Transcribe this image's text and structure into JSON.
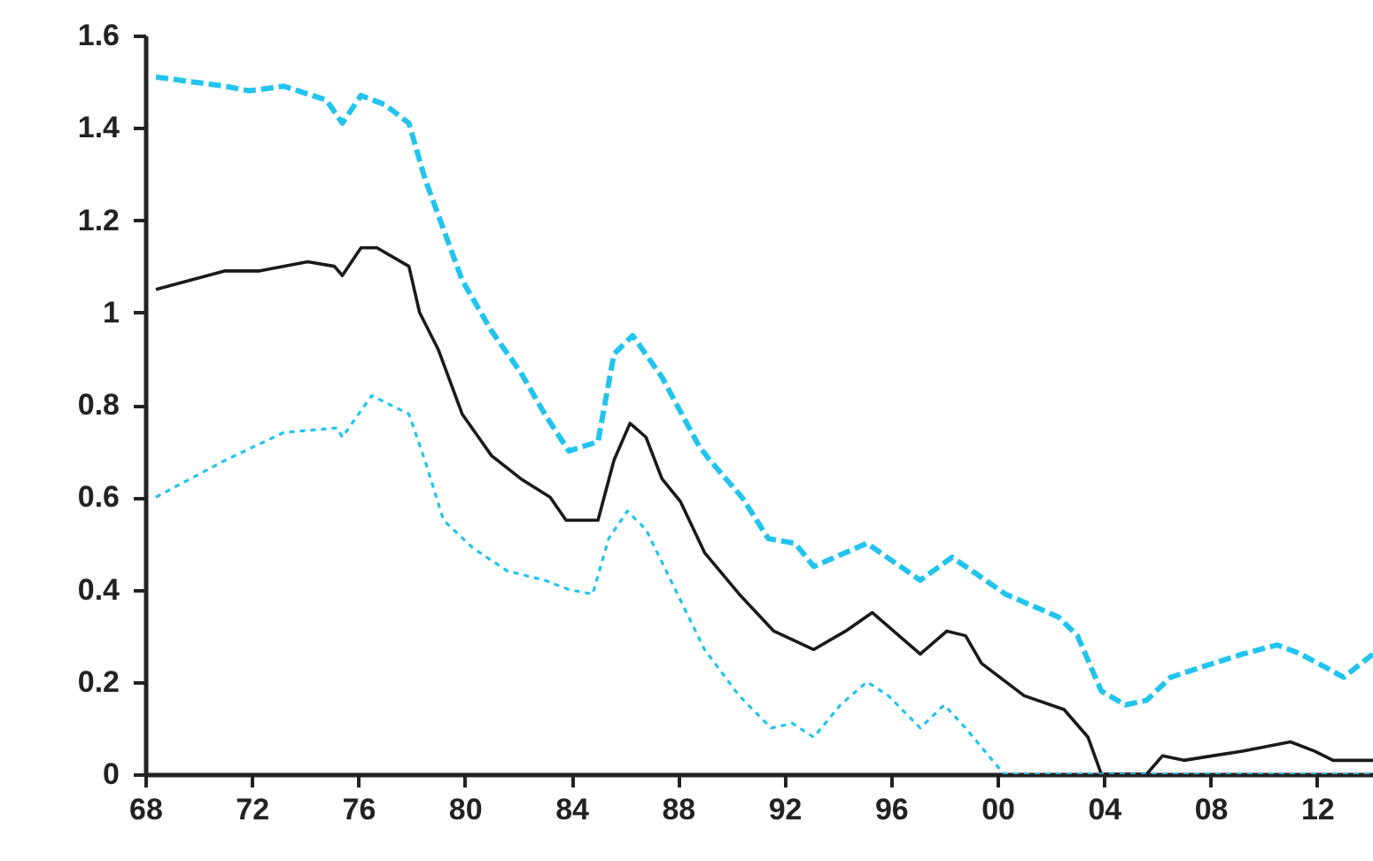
{
  "chart_data": {
    "type": "line",
    "xlim": [
      1968,
      2014.1
    ],
    "xticks": [
      {
        "value": 1968,
        "label": "68"
      },
      {
        "value": 1972,
        "label": "72"
      },
      {
        "value": 1976,
        "label": "76"
      },
      {
        "value": 1980,
        "label": "80"
      },
      {
        "value": 1984,
        "label": "84"
      },
      {
        "value": 1988,
        "label": "88"
      },
      {
        "value": 1992,
        "label": "92"
      },
      {
        "value": 1996,
        "label": "96"
      },
      {
        "value": 2000,
        "label": "00"
      },
      {
        "value": 2004,
        "label": "04"
      },
      {
        "value": 2008,
        "label": "08"
      },
      {
        "value": 2012,
        "label": "12"
      }
    ],
    "ylim": [
      0,
      1.6
    ],
    "yticks": [
      0,
      0.2,
      0.4,
      0.6,
      0.8,
      1,
      1.2,
      1.4,
      1.6
    ],
    "grid": false,
    "series": [
      {
        "color": "#22c4ee",
        "line_style": "dashed",
        "x": [
          1968.4,
          1971,
          1971.9,
          1973.2,
          1974.8,
          1975.4,
          1976.1,
          1977,
          1977.9,
          1978.5,
          1979.2,
          1979.9,
          1981,
          1982.1,
          1983,
          1983.9,
          1985,
          1985.6,
          1986.3,
          1987.4,
          1988.8,
          1989.2,
          1990.4,
          1991.4,
          1992.4,
          1993.1,
          1995.1,
          1997.1,
          1998.3,
          2000.3,
          2002.3,
          2003,
          2003.9,
          2004.8,
          2005.6,
          2006.5,
          2008.1,
          2009.2,
          2010.5,
          2011.4,
          2013,
          2014.1
        ],
        "values": [
          1.51,
          1.49,
          1.48,
          1.49,
          1.46,
          1.41,
          1.47,
          1.45,
          1.41,
          1.29,
          1.18,
          1.07,
          0.96,
          0.87,
          0.78,
          0.7,
          0.72,
          0.91,
          0.95,
          0.86,
          0.71,
          0.68,
          0.6,
          0.51,
          0.5,
          0.45,
          0.5,
          0.42,
          0.47,
          0.39,
          0.34,
          0.3,
          0.18,
          0.15,
          0.16,
          0.21,
          0.24,
          0.26,
          0.28,
          0.26,
          0.21,
          0.26
        ]
      },
      {
        "color": "#1a1a1a",
        "line_style": "solid",
        "x": [
          1968.4,
          1971,
          1972.3,
          1974.1,
          1975.1,
          1975.4,
          1976.1,
          1976.7,
          1977.9,
          1978.3,
          1979,
          1979.9,
          1981,
          1982.1,
          1983.2,
          1983.8,
          1985,
          1985.6,
          1986.2,
          1986.8,
          1987.4,
          1988.1,
          1989,
          1990.3,
          1991.6,
          1993.1,
          1994.3,
          1995.3,
          1997.1,
          1998.1,
          1998.8,
          1999.4,
          2001,
          2002.5,
          2003.4,
          2003.9,
          2005.6,
          2006.2,
          2007,
          2008.1,
          2009.2,
          2010.1,
          2011,
          2011.9,
          2012.6,
          2014.1
        ],
        "values": [
          1.05,
          1.09,
          1.09,
          1.11,
          1.1,
          1.08,
          1.14,
          1.14,
          1.1,
          1.0,
          0.92,
          0.78,
          0.69,
          0.64,
          0.6,
          0.55,
          0.55,
          0.68,
          0.76,
          0.73,
          0.64,
          0.59,
          0.48,
          0.39,
          0.31,
          0.27,
          0.31,
          0.35,
          0.26,
          0.31,
          0.3,
          0.24,
          0.17,
          0.14,
          0.08,
          0,
          0,
          0.04,
          0.03,
          0.04,
          0.05,
          0.06,
          0.07,
          0.05,
          0.03,
          0.03
        ]
      },
      {
        "color": "#22c4ee",
        "line_style": "dotted",
        "x": [
          1968.4,
          1971,
          1973.2,
          1975.2,
          1975.4,
          1976.5,
          1977.9,
          1978.5,
          1979.2,
          1980.3,
          1981.6,
          1983,
          1983.9,
          1984.8,
          1985.4,
          1986.1,
          1986.8,
          1987.9,
          1989,
          1990.3,
          1991.5,
          1992.3,
          1993.1,
          1994.1,
          1995.1,
          1995.9,
          1997.1,
          1998,
          1998.8,
          2000.1,
          2000.3,
          2014.1
        ],
        "values": [
          0.6,
          0.68,
          0.74,
          0.75,
          0.73,
          0.82,
          0.78,
          0.68,
          0.55,
          0.49,
          0.44,
          0.42,
          0.4,
          0.39,
          0.51,
          0.57,
          0.53,
          0.4,
          0.27,
          0.17,
          0.1,
          0.11,
          0.08,
          0.15,
          0.2,
          0.17,
          0.1,
          0.15,
          0.1,
          0.01,
          0,
          0
        ]
      }
    ]
  }
}
